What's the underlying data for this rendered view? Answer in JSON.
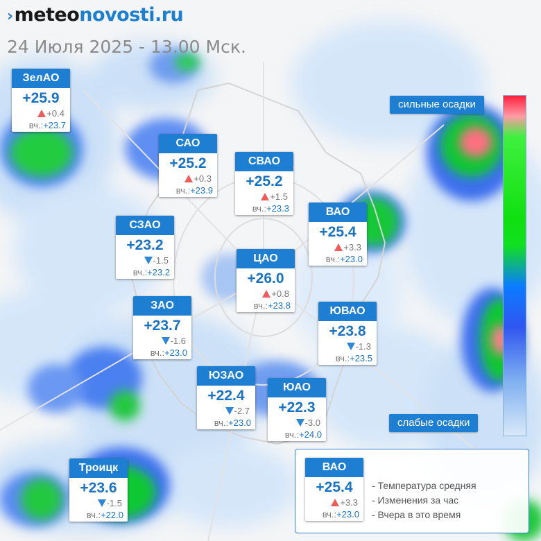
{
  "header": {
    "logo_part1": "meteo",
    "logo_part2": "novosti",
    "logo_part3": ".ru",
    "date": "24 Июля 2025 - 13.00 Мск."
  },
  "scale": {
    "top_label": "сильные осадки",
    "bottom_label": "слабые осадки",
    "colors": [
      "#ff1f3e",
      "#40f040",
      "#0a7cff",
      "#d8e8f8"
    ]
  },
  "districts": [
    {
      "name": "ЗелАО",
      "temp": "+25.9",
      "dir": "up",
      "change": "+0.4",
      "yest_label": "вч.:",
      "yest": "+23.7"
    },
    {
      "name": "САО",
      "temp": "+25.2",
      "dir": "up",
      "change": "+0.3",
      "yest_label": "вч.:",
      "yest": "+23.9"
    },
    {
      "name": "СВАО",
      "temp": "+25.2",
      "dir": "up",
      "change": "+1.5",
      "yest_label": "вч.:",
      "yest": "+23.3"
    },
    {
      "name": "ВАО",
      "temp": "+25.4",
      "dir": "up",
      "change": "+3.3",
      "yest_label": "вч.:",
      "yest": "+23.0"
    },
    {
      "name": "СЗАО",
      "temp": "+23.2",
      "dir": "down",
      "change": "-1.5",
      "yest_label": "вч.:",
      "yest": "+23.2"
    },
    {
      "name": "ЦАО",
      "temp": "+26.0",
      "dir": "up",
      "change": "+0.8",
      "yest_label": "вч.:",
      "yest": "+23.8"
    },
    {
      "name": "ЗАО",
      "temp": "+23.7",
      "dir": "down",
      "change": "-1.6",
      "yest_label": "вч.:",
      "yest": "+23.0"
    },
    {
      "name": "ЮВАО",
      "temp": "+23.8",
      "dir": "down",
      "change": "-1.3",
      "yest_label": "вч.:",
      "yest": "+23.5"
    },
    {
      "name": "ЮЗАО",
      "temp": "+22.4",
      "dir": "down",
      "change": "-2.7",
      "yest_label": "вч.:",
      "yest": "+23.0"
    },
    {
      "name": "ЮАО",
      "temp": "+22.3",
      "dir": "down",
      "change": "-3.0",
      "yest_label": "вч.:",
      "yest": "+24.0"
    },
    {
      "name": "Троицк",
      "temp": "+23.6",
      "dir": "down",
      "change": "-1.5",
      "yest_label": "вч.:",
      "yest": "+22.0"
    }
  ],
  "legend": {
    "sample": {
      "name": "ВАО",
      "temp": "+25.4",
      "dir": "up",
      "change": "+3.3",
      "yest_label": "вч.:",
      "yest": "+23.0"
    },
    "line1": "- Температура средняя",
    "line2": "- Изменения за час",
    "line3": "- Вчера в это время"
  }
}
